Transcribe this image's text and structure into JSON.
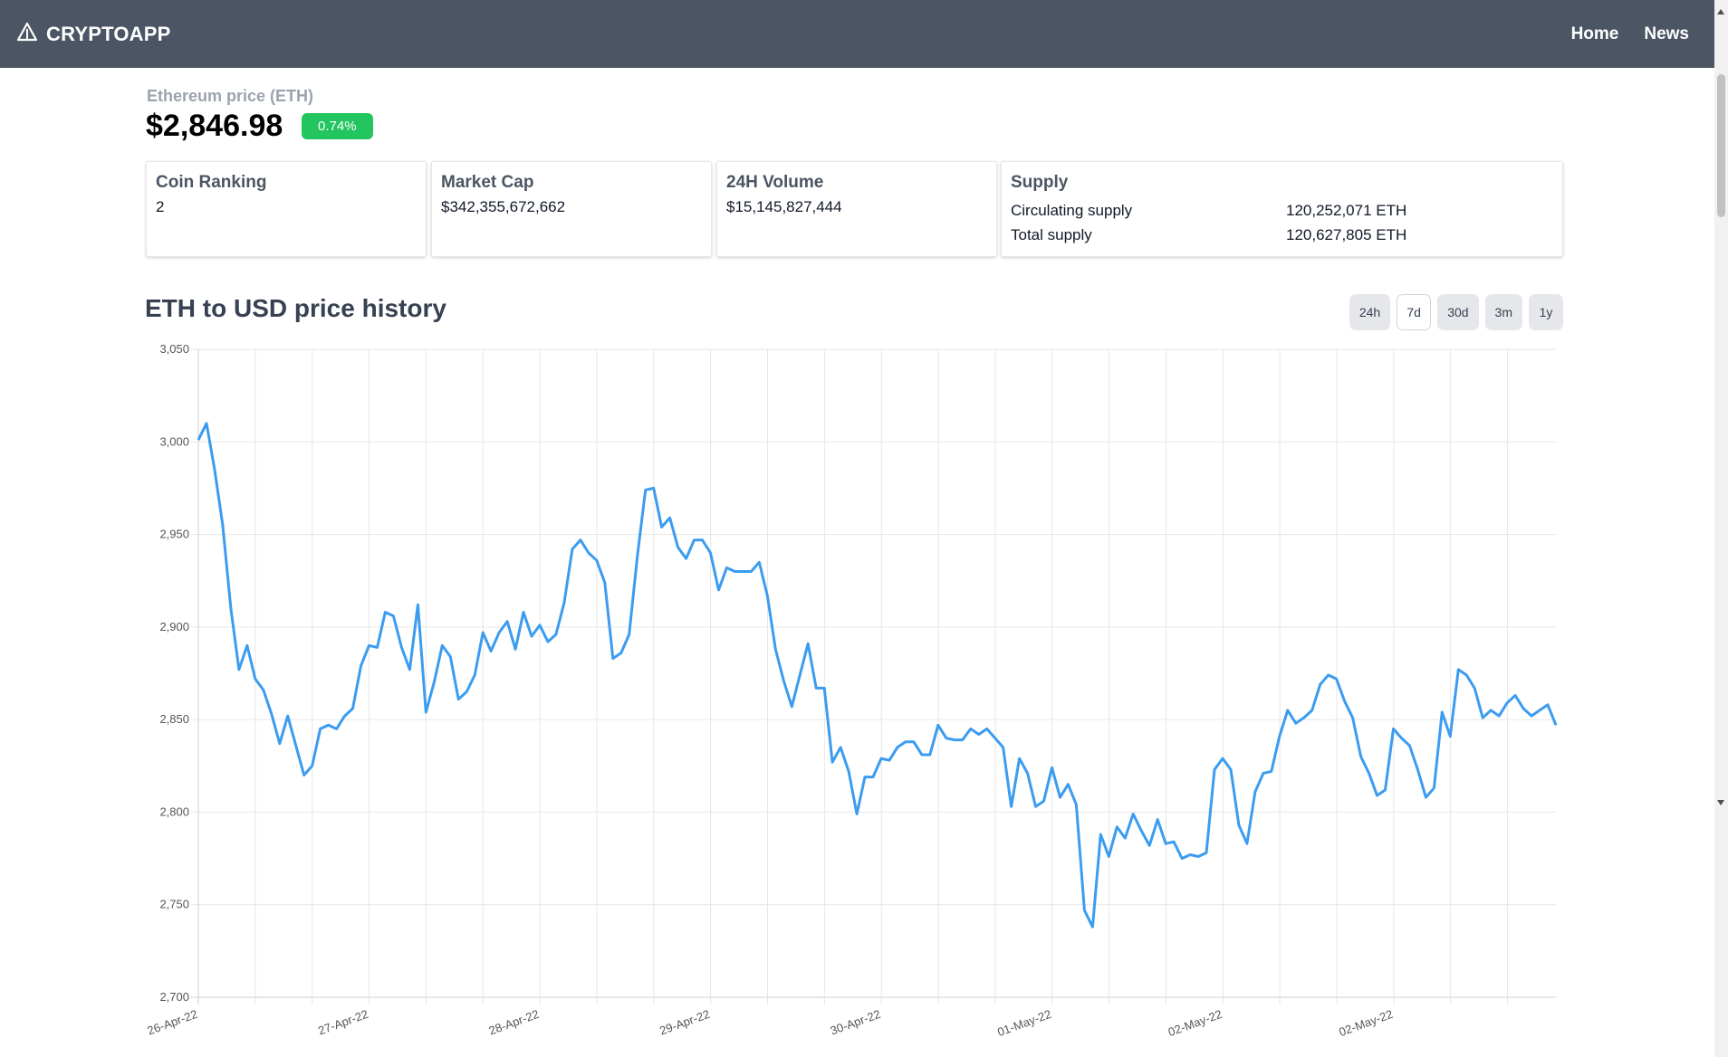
{
  "navbar": {
    "brand": "CRYPTOAPP",
    "brand_icon": "triangle-logo-icon",
    "links": [
      "Home",
      "News"
    ]
  },
  "coin": {
    "price_label": "Ethereum price (ETH)",
    "price": "$2,846.98",
    "change": "0.74%",
    "change_color": "#22c55e"
  },
  "stats": {
    "ranking": {
      "title": "Coin Ranking",
      "value": "2"
    },
    "market_cap": {
      "title": "Market Cap",
      "value": "$342,355,672,662"
    },
    "volume": {
      "title": "24H Volume",
      "value": "$15,145,827,444"
    },
    "supply": {
      "title": "Supply",
      "circulating_label": "Circulating supply",
      "circulating_value": "120,252,071 ETH",
      "total_label": "Total supply",
      "total_value": "120,627,805 ETH"
    }
  },
  "chart_section": {
    "title": "ETH to USD price history",
    "ranges": [
      "24h",
      "7d",
      "30d",
      "3m",
      "1y"
    ],
    "active_range": "7d"
  },
  "chart_data": {
    "type": "line",
    "title": "",
    "xlabel": "",
    "ylabel": "",
    "ylim": [
      2700,
      3050
    ],
    "yticks": [
      2700,
      2750,
      2800,
      2850,
      2900,
      2950,
      3000,
      3050
    ],
    "ytick_labels": [
      "2,700",
      "2,750",
      "2,800",
      "2,850",
      "2,900",
      "2,950",
      "3,000",
      "3,050"
    ],
    "xtick_labels": [
      "26-Apr-22",
      "27-Apr-22",
      "28-Apr-22",
      "29-Apr-22",
      "30-Apr-22",
      "01-May-22",
      "02-May-22",
      "02-May-22"
    ],
    "grid": true,
    "line_color": "#3b9cf0",
    "series": [
      {
        "values": [
          3001,
          3010,
          2985,
          2955,
          2910,
          2877,
          2890,
          2872,
          2866,
          2853,
          2837,
          2852,
          2836,
          2820,
          2825,
          2845,
          2847,
          2845,
          2852,
          2856,
          2879,
          2890,
          2889,
          2908,
          2906,
          2889,
          2877,
          2912,
          2854,
          2870,
          2890,
          2884,
          2861,
          2865,
          2874,
          2897,
          2887,
          2897,
          2903,
          2888,
          2908,
          2895,
          2901,
          2892,
          2896,
          2913,
          2942,
          2947,
          2940,
          2936,
          2924,
          2883,
          2886,
          2896,
          2938,
          2974,
          2975,
          2954,
          2959,
          2943,
          2937,
          2947,
          2947,
          2940,
          2920,
          2932,
          2930,
          2930,
          2930,
          2935,
          2917,
          2888,
          2871,
          2857,
          2874,
          2891,
          2867,
          2867,
          2827,
          2835,
          2822,
          2799,
          2819,
          2819,
          2829,
          2828,
          2835,
          2838,
          2838,
          2831,
          2831,
          2847,
          2840,
          2839,
          2839,
          2845,
          2842,
          2845,
          2840,
          2835,
          2803,
          2829,
          2821,
          2803,
          2806,
          2824,
          2808,
          2815,
          2804,
          2747,
          2738,
          2788,
          2776,
          2792,
          2786,
          2799,
          2790,
          2782,
          2796,
          2783,
          2784,
          2775,
          2777,
          2776,
          2778,
          2823,
          2829,
          2823,
          2793,
          2783,
          2811,
          2821,
          2822,
          2841,
          2855,
          2848,
          2851,
          2855,
          2869,
          2874,
          2872,
          2860,
          2851,
          2830,
          2821,
          2809,
          2812,
          2845,
          2840,
          2836,
          2823,
          2808,
          2813,
          2854,
          2841,
          2877,
          2874,
          2867,
          2851,
          2855,
          2852,
          2859,
          2863,
          2856,
          2852,
          2855,
          2858,
          2847
        ]
      }
    ]
  }
}
